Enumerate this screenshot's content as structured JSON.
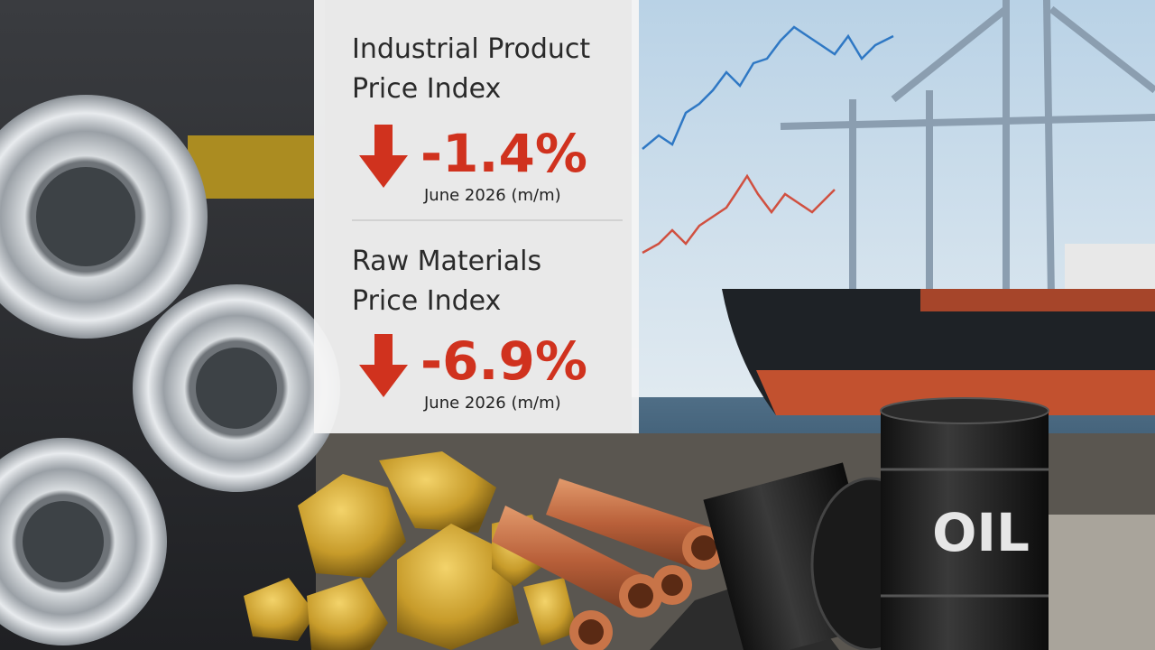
{
  "panel": {
    "sections": [
      {
        "title_lines": [
          "Industrial Product",
          "Price Index"
        ],
        "change": "-1.4%",
        "period": "June 2026 (m/m)"
      },
      {
        "title_lines": [
          "Raw Materials",
          "Price Index"
        ],
        "change": "-6.9%",
        "period": "June 2026 (m/m)"
      }
    ]
  },
  "barrel_label": "OIL"
}
